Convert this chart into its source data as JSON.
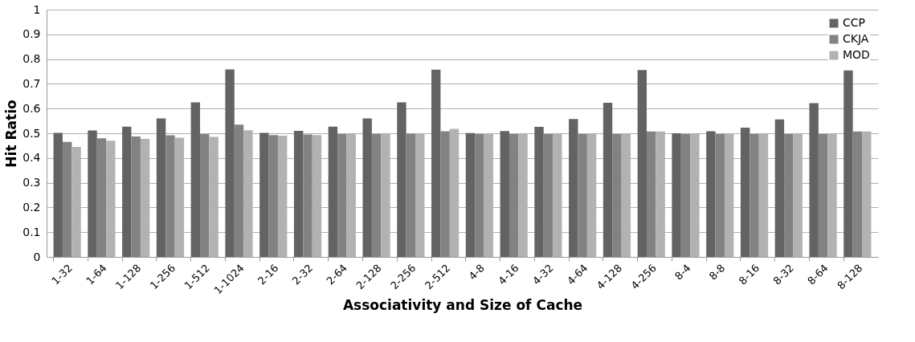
{
  "chart_data": {
    "type": "bar",
    "xlabel": "Associativity and Size of Cache",
    "ylabel": "Hit Ratio",
    "categories": [
      "1-32",
      "1-64",
      "1-128",
      "1-256",
      "1-512",
      "1-1024",
      "2-16",
      "2-32",
      "2-64",
      "2-128",
      "2-256",
      "2-512",
      "4-8",
      "4-16",
      "4-32",
      "4-64",
      "4-128",
      "4-256",
      "8-4",
      "8-8",
      "8-16",
      "8-32",
      "8-64",
      "8-128"
    ],
    "series": [
      {
        "name": "CCP",
        "color": "#636363",
        "values": [
          0.502,
          0.511,
          0.527,
          0.56,
          0.625,
          0.758,
          0.502,
          0.51,
          0.527,
          0.56,
          0.625,
          0.757,
          0.501,
          0.509,
          0.526,
          0.558,
          0.623,
          0.756,
          0.5,
          0.508,
          0.523,
          0.556,
          0.622,
          0.754
        ]
      },
      {
        "name": "CKJA",
        "color": "#828282",
        "values": [
          0.465,
          0.48,
          0.487,
          0.492,
          0.497,
          0.535,
          0.493,
          0.495,
          0.497,
          0.497,
          0.498,
          0.508,
          0.497,
          0.497,
          0.497,
          0.497,
          0.497,
          0.507,
          0.497,
          0.497,
          0.497,
          0.497,
          0.497,
          0.507
        ]
      },
      {
        "name": "MOD",
        "color": "#b2b2b2",
        "values": [
          0.445,
          0.47,
          0.477,
          0.482,
          0.485,
          0.512,
          0.49,
          0.493,
          0.497,
          0.497,
          0.498,
          0.518,
          0.497,
          0.497,
          0.497,
          0.497,
          0.497,
          0.507,
          0.497,
          0.497,
          0.497,
          0.497,
          0.497,
          0.507
        ]
      }
    ],
    "ylim": [
      0,
      1
    ],
    "yticks": [
      0,
      0.1,
      0.2,
      0.3,
      0.4,
      0.5,
      0.6,
      0.7,
      0.8,
      0.9,
      1
    ],
    "grid": "y",
    "legend": "top right"
  }
}
